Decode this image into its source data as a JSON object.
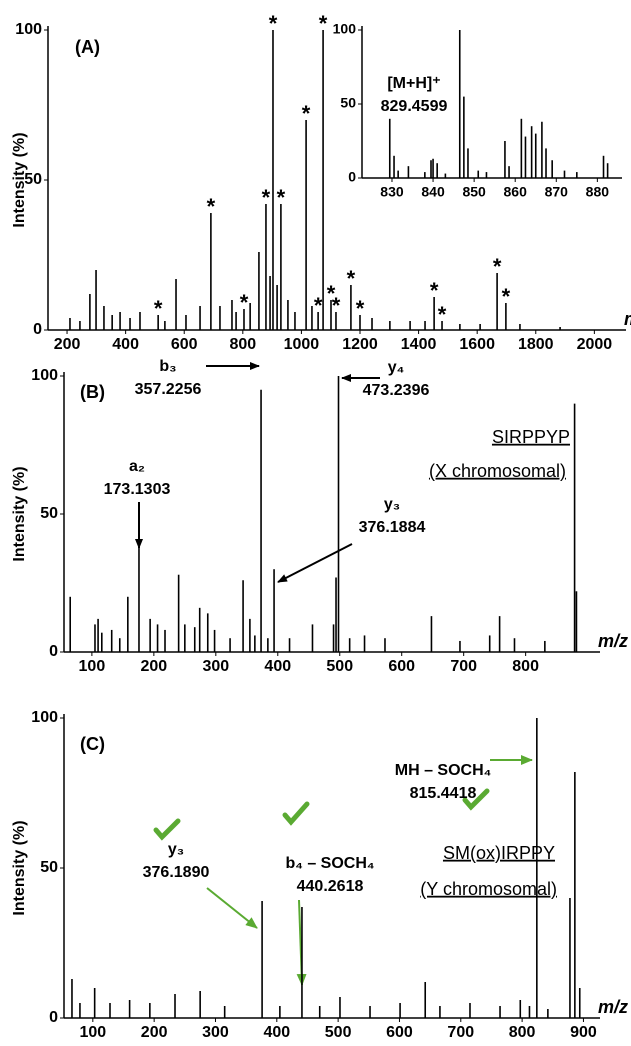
{
  "chart_data": [
    {
      "type": "stem",
      "panel_label": "(A)",
      "y_label": "Intensity (%)",
      "x_label": "m/z",
      "color": "#000000",
      "xlim": [
        135,
        2108
      ],
      "ylim": [
        0,
        100
      ],
      "xticks": [
        200,
        400,
        600,
        800,
        1000,
        1200,
        1400,
        1600,
        1800,
        2000
      ],
      "yticks": [
        0,
        50,
        100
      ],
      "x": [
        210,
        244,
        278,
        299,
        326,
        354,
        381,
        415,
        449,
        534,
        572,
        606,
        654,
        722,
        763,
        777,
        825,
        855,
        893,
        917,
        954,
        978,
        1036,
        1241,
        1302,
        1371,
        1422,
        1541,
        1610,
        1746,
        1883
      ],
      "values": [
        4,
        3,
        12,
        20,
        8,
        5,
        6,
        4,
        6,
        3,
        17,
        5,
        8,
        8,
        10,
        6,
        9,
        26,
        18,
        15,
        10,
        6,
        8,
        4,
        3,
        3,
        3,
        2,
        2,
        2,
        1
      ],
      "starred": {
        "marker": "*",
        "x": [
          511,
          691,
          804,
          879,
          903,
          930,
          1016,
          1057,
          1074,
          1101,
          1118,
          1169,
          1200,
          1453,
          1480,
          1668,
          1698
        ],
        "values": [
          5,
          39,
          7,
          42,
          100,
          42,
          70,
          6,
          100,
          10,
          6,
          15,
          5,
          11,
          3,
          19,
          9
        ]
      }
    },
    {
      "type": "stem",
      "inset": true,
      "color": "#000000",
      "xlim": [
        822.7,
        886
      ],
      "ylim": [
        0,
        100
      ],
      "xticks": [
        830,
        840,
        850,
        860,
        870,
        880
      ],
      "yticks": [
        0,
        50,
        100
      ],
      "x": [
        829.46,
        830.5,
        831.5,
        834,
        838,
        839.5,
        840,
        841,
        843,
        846.5,
        847.5,
        848.5,
        851,
        853,
        857.5,
        858.5,
        861.5,
        862.5,
        864,
        865,
        866.5,
        867.5,
        869,
        872,
        875,
        881.5,
        882.5
      ],
      "values": [
        40,
        15,
        5,
        8,
        4,
        12,
        13,
        10,
        3,
        100,
        55,
        20,
        5,
        4,
        25,
        8,
        40,
        28,
        35,
        30,
        38,
        20,
        12,
        5,
        4,
        15,
        10
      ],
      "annotations": [
        {
          "lines": [
            "[M+H]⁺",
            "829.4599"
          ]
        }
      ]
    },
    {
      "type": "stem",
      "panel_label": "(B)",
      "y_label": "Intensity (%)",
      "x_label": "m/z",
      "color": "#000000",
      "xlim": [
        55,
        920
      ],
      "ylim": [
        0,
        100
      ],
      "xticks": [
        100,
        200,
        300,
        400,
        500,
        600,
        700,
        800
      ],
      "yticks": [
        0,
        50,
        100
      ],
      "x": [
        65,
        105,
        110,
        116,
        132,
        145,
        158,
        176,
        194,
        206,
        218,
        240,
        250,
        266,
        274,
        287,
        298,
        323,
        344,
        355,
        363,
        373,
        384,
        394,
        419,
        456,
        490,
        494,
        498,
        516,
        540,
        573,
        648,
        694,
        742,
        758,
        782,
        831,
        879,
        882
      ],
      "values": [
        20,
        10,
        12,
        7,
        8,
        5,
        20,
        41,
        12,
        10,
        8,
        28,
        10,
        9,
        16,
        14,
        8,
        5,
        26,
        12,
        6,
        95,
        5,
        30,
        5,
        10,
        10,
        27,
        100,
        5,
        6,
        5,
        13,
        4,
        6,
        13,
        5,
        4,
        90,
        22
      ],
      "title_lines": [
        "SIRPPYP",
        "(X chromosomal)"
      ],
      "annotations": [
        {
          "lines": [
            "b₃",
            "357.2256"
          ]
        },
        {
          "lines": [
            "y₄",
            "473.2396"
          ]
        },
        {
          "lines": [
            "a₂",
            "173.1303"
          ]
        },
        {
          "lines": [
            "y₃",
            "376.1884"
          ]
        }
      ]
    },
    {
      "type": "stem",
      "panel_label": "(C)",
      "y_label": "Intensity (%)",
      "x_label": "m/z",
      "color": "#000000",
      "xlim": [
        53,
        927
      ],
      "ylim": [
        0,
        100
      ],
      "xticks": [
        100,
        200,
        300,
        400,
        500,
        600,
        700,
        800,
        900
      ],
      "yticks": [
        0,
        50,
        100
      ],
      "x": [
        66,
        79,
        103,
        128,
        160,
        193,
        234,
        275,
        315,
        376,
        405,
        441,
        470,
        503,
        552,
        601,
        642,
        666,
        715,
        764,
        797,
        812,
        824,
        842,
        878,
        886,
        894
      ],
      "values": [
        13,
        5,
        10,
        5,
        6,
        5,
        8,
        9,
        4,
        39,
        4,
        37,
        4,
        7,
        4,
        5,
        12,
        4,
        5,
        4,
        6,
        4,
        100,
        3,
        40,
        82,
        10
      ],
      "title_lines": [
        "SM(ox)IRPPY",
        "(Y chromosomal)"
      ],
      "annotations": [
        {
          "lines": [
            "MH – SOCH₄",
            "815.4418"
          ]
        },
        {
          "lines": [
            "b₄ – SOCH₄",
            "440.2618"
          ]
        },
        {
          "lines": [
            "y₃",
            "376.1890"
          ]
        }
      ]
    }
  ]
}
